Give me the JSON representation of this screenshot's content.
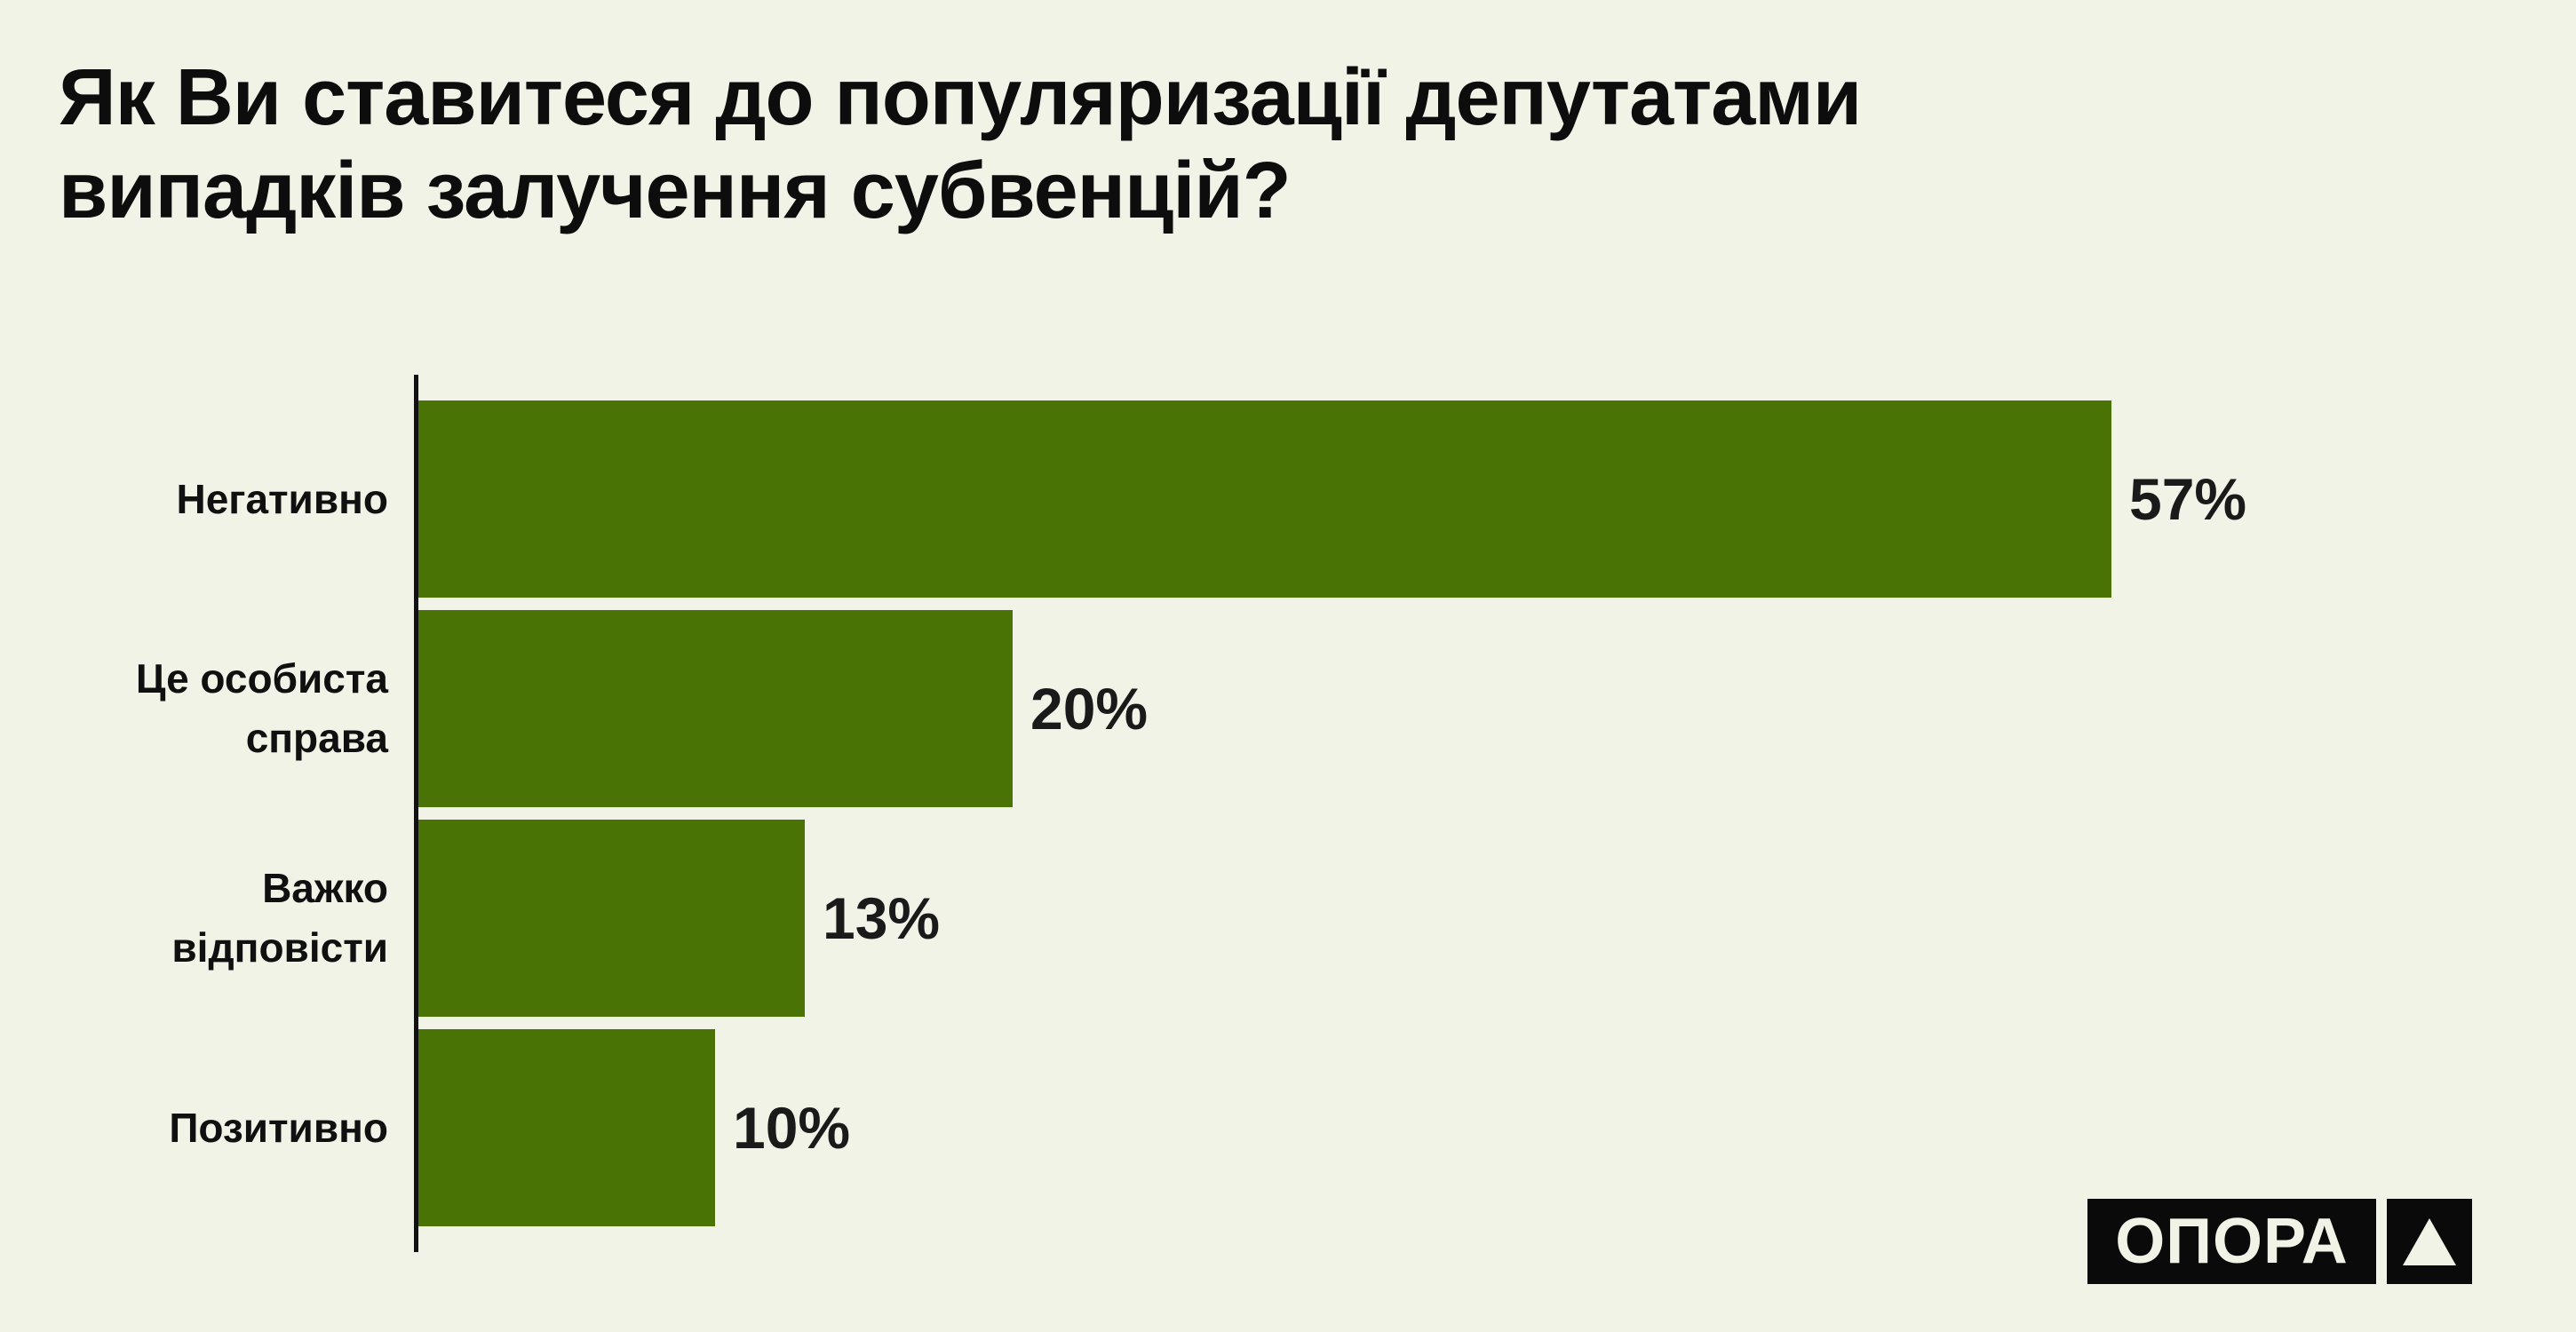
{
  "background_color": "#F1F3E7",
  "title": {
    "lines": [
      "Як Ви ставитеся до популяризації депутатами",
      "випадків залучення субвенцій?"
    ]
  },
  "chart_data": {
    "type": "bar",
    "orientation": "horizontal",
    "title": "Як Ви ставитеся до популяризації депутатами випадків залучення субвенцій?",
    "categories": [
      "Негативно",
      "Це особиста\nсправа",
      "Важко\nвідповісти",
      "Позитивно"
    ],
    "values": [
      57,
      20,
      13,
      10
    ],
    "value_labels": [
      "57%",
      "20%",
      "13%",
      "10%"
    ],
    "bar_color": "#4A7306",
    "axis_color": "#111111",
    "xlim": [
      0,
      60
    ],
    "grid": false,
    "legend": false
  },
  "logo": {
    "text": "ОПОРА",
    "symbol": "triangle-up",
    "background": "#0A0A0A",
    "foreground": "#F1F3E7"
  }
}
